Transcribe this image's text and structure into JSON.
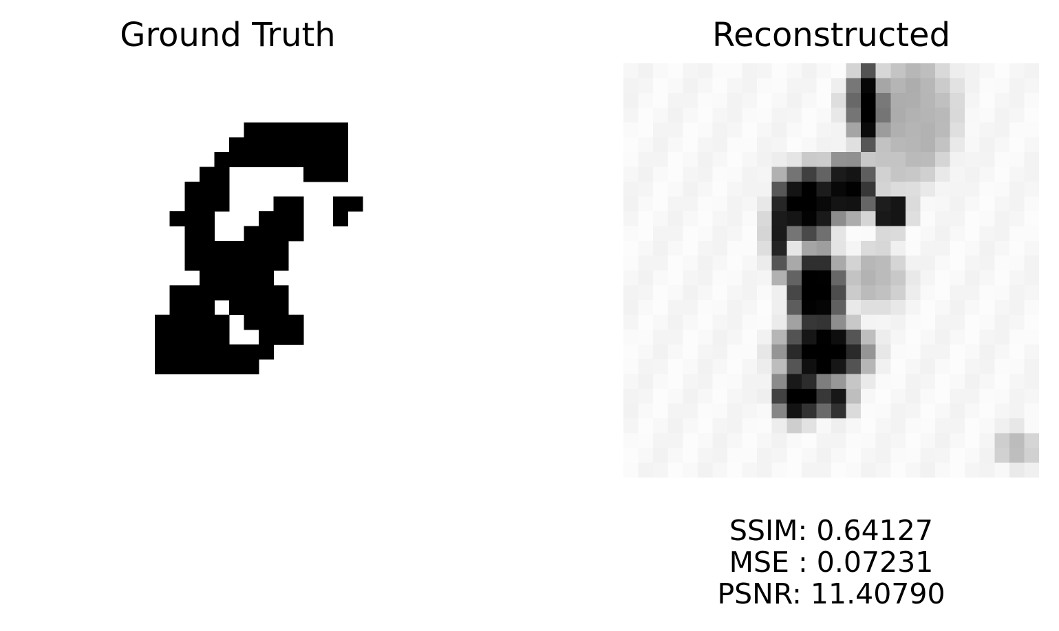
{
  "panels": {
    "ground_truth": {
      "title": "Ground Truth",
      "grid": [
        "............................",
        "............................",
        "............................",
        "............................",
        "...............#######......",
        "..............########......",
        ".............#########......",
        "............##.....###......",
        "...........###............",
        "...........###...##..##......",
        "..........###...###..#.......",
        "...........##..####..........",
        "...........#######..........",
        "...........#######...........",
        "............#####...........",
        "..........########...........",
        "..........###.####...........",
        ".........#####.####..........",
        ".........#####..###..........",
        ".........########............",
        ".........#######.............",
        "............................",
        "............................",
        "............................",
        "............................",
        "............................",
        "............................",
        "............................"
      ]
    },
    "reconstructed": {
      "title": "Reconstructed",
      "metrics": [
        "SSIM: 0.64127",
        "MSE : 0.07231",
        "PSNR: 11.40790"
      ]
    }
  }
}
